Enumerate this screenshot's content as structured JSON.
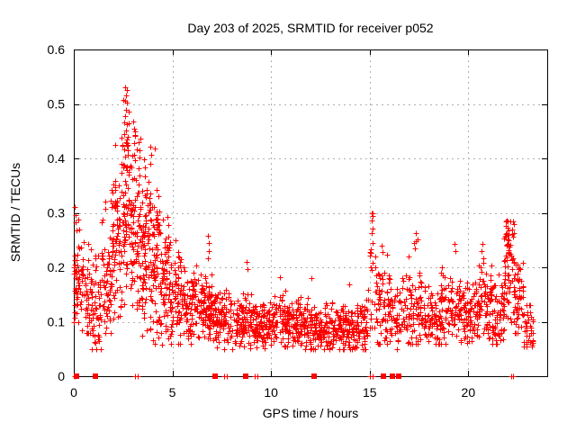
{
  "chart_data": {
    "type": "scatter",
    "title": "Day 203 of 2025, SRMTID for receiver p052",
    "xlabel": "GPS time / hours",
    "ylabel": "SRMTID / TECUs",
    "xlim": [
      0,
      24
    ],
    "ylim": [
      0,
      0.6
    ],
    "xticks": [
      0,
      5,
      10,
      15,
      20
    ],
    "yticks": [
      0,
      0.1,
      0.2,
      0.3,
      0.4,
      0.5,
      0.6
    ],
    "grid": true,
    "legend_position": "none",
    "marker": "plus-cross",
    "zero_marker": "filled-square",
    "colors": {
      "points": "#ff0000",
      "axis": "#000000",
      "grid": "#b0b0b0",
      "text": "#000000",
      "background": "#ffffff"
    },
    "seed": 9,
    "bands_format": [
      "x_start",
      "x_end",
      "n_points",
      "y_center",
      "y_halfspread",
      "y_min",
      "y_max",
      "upper_tail_fraction"
    ],
    "density_bands": [
      [
        0.0,
        0.3,
        45,
        0.16,
        0.05,
        0.1,
        0.31,
        0.15
      ],
      [
        0.3,
        0.9,
        55,
        0.15,
        0.05,
        0.08,
        0.27,
        0.1
      ],
      [
        0.9,
        1.4,
        45,
        0.13,
        0.06,
        0.05,
        0.25,
        0.0
      ],
      [
        1.4,
        1.9,
        60,
        0.19,
        0.07,
        0.08,
        0.33,
        0.0
      ],
      [
        1.9,
        2.4,
        75,
        0.24,
        0.08,
        0.1,
        0.44,
        0.08
      ],
      [
        2.4,
        2.9,
        85,
        0.28,
        0.09,
        0.11,
        0.53,
        0.15
      ],
      [
        2.9,
        3.4,
        85,
        0.26,
        0.09,
        0.1,
        0.46,
        0.1
      ],
      [
        3.4,
        3.9,
        80,
        0.22,
        0.08,
        0.06,
        0.4,
        0.08
      ],
      [
        3.9,
        4.4,
        75,
        0.2,
        0.08,
        0.05,
        0.42,
        0.05
      ],
      [
        4.4,
        4.9,
        70,
        0.17,
        0.06,
        0.06,
        0.3,
        0.05
      ],
      [
        4.9,
        5.5,
        70,
        0.14,
        0.05,
        0.06,
        0.24,
        0.0
      ],
      [
        5.5,
        6.3,
        85,
        0.13,
        0.04,
        0.06,
        0.23,
        0.0
      ],
      [
        6.3,
        7.0,
        90,
        0.125,
        0.035,
        0.07,
        0.2,
        0.0
      ],
      [
        7.0,
        8.0,
        100,
        0.105,
        0.03,
        0.05,
        0.18,
        0.0
      ],
      [
        8.0,
        9.0,
        100,
        0.1,
        0.03,
        0.05,
        0.19,
        0.0
      ],
      [
        9.0,
        10.0,
        100,
        0.095,
        0.028,
        0.05,
        0.16,
        0.0
      ],
      [
        10.0,
        11.0,
        100,
        0.1,
        0.03,
        0.055,
        0.17,
        0.0
      ],
      [
        11.0,
        12.0,
        100,
        0.092,
        0.028,
        0.05,
        0.16,
        0.0
      ],
      [
        12.0,
        13.0,
        100,
        0.088,
        0.027,
        0.05,
        0.15,
        0.0
      ],
      [
        13.0,
        14.0,
        95,
        0.085,
        0.027,
        0.05,
        0.15,
        0.0
      ],
      [
        14.0,
        14.9,
        90,
        0.09,
        0.028,
        0.05,
        0.16,
        0.0
      ],
      [
        14.9,
        15.3,
        20,
        0.17,
        0.07,
        0.09,
        0.3,
        0.2
      ],
      [
        15.3,
        16.0,
        65,
        0.13,
        0.05,
        0.06,
        0.24,
        0.0
      ],
      [
        16.0,
        16.8,
        60,
        0.115,
        0.04,
        0.05,
        0.2,
        0.0
      ],
      [
        16.8,
        17.6,
        70,
        0.125,
        0.045,
        0.06,
        0.26,
        0.05
      ],
      [
        17.6,
        18.6,
        85,
        0.11,
        0.035,
        0.06,
        0.19,
        0.0
      ],
      [
        18.6,
        19.6,
        85,
        0.12,
        0.04,
        0.06,
        0.25,
        0.05
      ],
      [
        19.6,
        20.5,
        85,
        0.11,
        0.035,
        0.06,
        0.19,
        0.0
      ],
      [
        20.5,
        21.2,
        70,
        0.13,
        0.045,
        0.07,
        0.24,
        0.05
      ],
      [
        21.2,
        21.8,
        60,
        0.115,
        0.04,
        0.06,
        0.2,
        0.0
      ],
      [
        21.8,
        22.3,
        70,
        0.2,
        0.06,
        0.1,
        0.285,
        0.1
      ],
      [
        22.3,
        22.8,
        50,
        0.14,
        0.04,
        0.08,
        0.21,
        0.0
      ],
      [
        22.8,
        23.3,
        40,
        0.09,
        0.03,
        0.055,
        0.13,
        0.0
      ]
    ],
    "outlier_points": [
      [
        2.62,
        0.531
      ],
      [
        2.67,
        0.526
      ],
      [
        2.63,
        0.516
      ],
      [
        2.7,
        0.503
      ],
      [
        2.66,
        0.49
      ],
      [
        2.61,
        0.477
      ],
      [
        2.71,
        0.463
      ],
      [
        2.65,
        0.452
      ],
      [
        2.74,
        0.44
      ],
      [
        2.68,
        0.428
      ],
      [
        2.72,
        0.415
      ],
      [
        2.6,
        0.404
      ],
      [
        3.02,
        0.468
      ],
      [
        3.07,
        0.455
      ],
      [
        3.12,
        0.441
      ],
      [
        3.05,
        0.428
      ],
      [
        3.3,
        0.43
      ],
      [
        3.35,
        0.415
      ],
      [
        3.55,
        0.398
      ],
      [
        3.6,
        0.383
      ],
      [
        3.88,
        0.421
      ],
      [
        3.93,
        0.406
      ],
      [
        3.9,
        0.39
      ],
      [
        4.3,
        0.33
      ],
      [
        4.75,
        0.292
      ],
      [
        4.8,
        0.278
      ],
      [
        5.15,
        0.25
      ],
      [
        1.05,
        0.062
      ],
      [
        1.15,
        0.05
      ],
      [
        1.25,
        0.068
      ],
      [
        4.1,
        0.06
      ],
      [
        4.3,
        0.071
      ],
      [
        4.45,
        0.058
      ],
      [
        3.45,
        0.075
      ],
      [
        0.06,
        0.31
      ],
      [
        0.1,
        0.296
      ],
      [
        0.08,
        0.282
      ],
      [
        0.02,
        0.2
      ],
      [
        0.03,
        0.193
      ],
      [
        6.82,
        0.258
      ],
      [
        6.86,
        0.244
      ],
      [
        6.84,
        0.23
      ],
      [
        6.8,
        0.216
      ],
      [
        8.78,
        0.21
      ],
      [
        8.82,
        0.197
      ],
      [
        10.45,
        0.182
      ],
      [
        12.05,
        0.18
      ],
      [
        13.95,
        0.168
      ],
      [
        15.08,
        0.3
      ],
      [
        15.12,
        0.286
      ],
      [
        15.1,
        0.263
      ],
      [
        15.15,
        0.244
      ],
      [
        15.06,
        0.226
      ],
      [
        15.13,
        0.208
      ],
      [
        15.6,
        0.24
      ],
      [
        15.65,
        0.228
      ],
      [
        17.32,
        0.262
      ],
      [
        17.36,
        0.248
      ],
      [
        17.3,
        0.234
      ],
      [
        19.3,
        0.243
      ],
      [
        19.34,
        0.229
      ],
      [
        20.72,
        0.243
      ],
      [
        20.68,
        0.229
      ],
      [
        20.76,
        0.216
      ],
      [
        21.95,
        0.286
      ],
      [
        22.0,
        0.273
      ],
      [
        21.9,
        0.261
      ],
      [
        22.05,
        0.25
      ],
      [
        22.48,
        0.205
      ],
      [
        22.55,
        0.196
      ]
    ],
    "zero_square_markers_x": [
      0.12,
      1.1,
      7.18,
      8.72,
      12.18,
      15.68,
      16.15,
      16.45
    ],
    "zero_plus_markers_x": [
      0.05,
      3.1,
      3.22,
      7.62,
      7.74,
      9.18,
      9.3,
      15.02,
      15.14,
      22.16,
      22.28
    ]
  }
}
